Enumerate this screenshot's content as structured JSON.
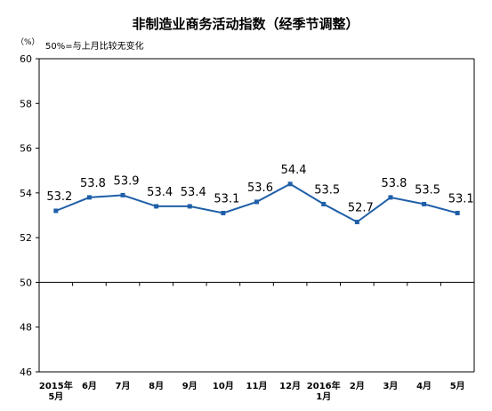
{
  "chart_data": {
    "type": "line",
    "title": "非制造业商务活动指数（经季节调整）",
    "unit": "（%）",
    "note": "50%=与上月比较无变化",
    "categories": [
      [
        "2015年",
        "5月"
      ],
      [
        "6月"
      ],
      [
        "7月"
      ],
      [
        "8月"
      ],
      [
        "9月"
      ],
      [
        "10月"
      ],
      [
        "11月"
      ],
      [
        "12月"
      ],
      [
        "2016年",
        "1月"
      ],
      [
        "2月"
      ],
      [
        "3月"
      ],
      [
        "4月"
      ],
      [
        "5月"
      ]
    ],
    "series": [
      {
        "values": [
          53.2,
          53.8,
          53.9,
          53.4,
          53.4,
          53.1,
          53.6,
          54.4,
          53.5,
          52.7,
          53.8,
          53.5,
          53.1
        ],
        "labels": [
          "53.2",
          "53.8",
          "53.9",
          "53.4",
          "53.4",
          "53.1",
          "53.6",
          "54.4",
          "53.5",
          "52.7",
          "53.8",
          "53.5",
          "53.1"
        ]
      }
    ],
    "ylim": [
      46,
      60
    ],
    "yticks": [
      "46",
      "48",
      "50",
      "52",
      "54",
      "56",
      "58",
      "60"
    ],
    "reference_line": 50,
    "grid": false,
    "legend": "none",
    "colors": {
      "line": "#1f5fa8",
      "axis": "#000000"
    }
  }
}
